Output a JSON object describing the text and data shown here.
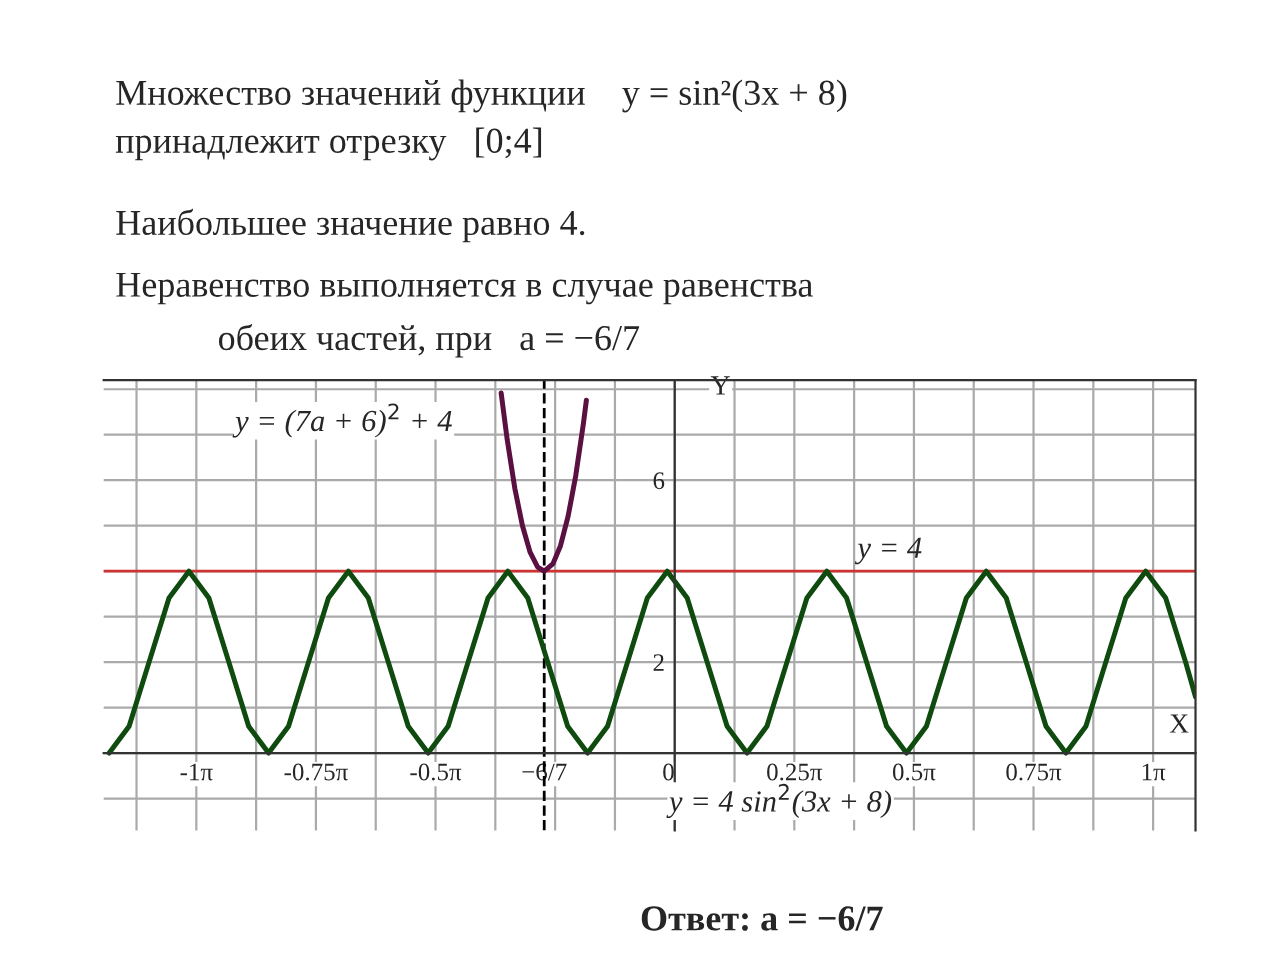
{
  "chart_data": {
    "type": "line",
    "xlabel": "X",
    "ylabel": "Y",
    "series": [
      {
        "color": "#0f4a0f",
        "x": [
          -3.714,
          -3.583,
          -3.452,
          -3.321,
          -3.19,
          -3.059,
          -2.928,
          -2.798,
          -2.667,
          -2.536,
          -2.405,
          -2.274,
          -2.143,
          -2.012,
          -1.881,
          -1.75,
          -1.619,
          -1.488,
          -1.357,
          -1.226,
          -1.096,
          -0.965,
          -0.834,
          -0.703,
          -0.572,
          -0.441,
          -0.31,
          -0.18,
          -0.049,
          0.082,
          0.213,
          0.344,
          0.475,
          0.606,
          0.737,
          0.868,
          0.999,
          1.129,
          1.26,
          1.391,
          1.522,
          1.653,
          1.784,
          1.915,
          2.046,
          2.177,
          2.308,
          2.438,
          2.569,
          2.7,
          2.831,
          2.962,
          3.093,
          3.224,
          3.355,
          3.42
        ],
        "values": [
          0,
          0.59,
          2,
          3.41,
          4,
          3.41,
          2,
          0.59,
          0,
          0.59,
          2,
          3.41,
          4,
          3.41,
          2,
          0.59,
          0,
          0.59,
          2,
          3.41,
          4,
          3.41,
          2,
          0.59,
          0,
          0.59,
          2,
          3.41,
          4,
          3.41,
          2,
          0.59,
          0,
          0.59,
          2,
          3.41,
          4,
          3.41,
          2,
          0.59,
          0,
          0.59,
          2,
          3.41,
          4,
          3.41,
          2,
          0.59,
          0,
          0.59,
          2,
          3.41,
          4,
          3.41,
          2,
          1.24
        ]
      },
      {
        "color": "#5a1040",
        "x": [
          -1.14,
          -1.1,
          -1.05,
          -1.0,
          -0.95,
          -0.9,
          -0.857,
          -0.8,
          -0.75,
          -0.7,
          -0.65,
          -0.6,
          -0.58
        ],
        "values": [
          7.92,
          6.89,
          5.82,
          5.0,
          4.42,
          4.09,
          4.0,
          4.16,
          4.56,
          5.21,
          6.1,
          7.24,
          7.76
        ]
      }
    ],
    "xlim": [
      -3.75,
      3.42
    ],
    "ylim": [
      -1.7,
      8.2
    ],
    "xticks": [
      {
        "value": -3.1416,
        "label": "-1π"
      },
      {
        "value": -2.3562,
        "label": "-0.75π"
      },
      {
        "value": -1.5708,
        "label": "-0.5π"
      },
      {
        "value": -0.857,
        "label": "−6/7"
      },
      {
        "value": 0,
        "label": "0"
      },
      {
        "value": 0.7854,
        "label": "0.25π"
      },
      {
        "value": 1.5708,
        "label": "0.5π"
      },
      {
        "value": 2.3562,
        "label": "0.75π"
      },
      {
        "value": 3.1416,
        "label": "1π"
      }
    ],
    "yticks": [
      2,
      6
    ],
    "grid": true,
    "ref_lines": [
      {
        "axis": "y",
        "value": 4,
        "label": "y = 4",
        "color": "#cc3333",
        "line_style": "solid"
      },
      {
        "axis": "x",
        "value": -0.857,
        "color": "#000000",
        "line_style": "dashed"
      }
    ],
    "annotations": [
      "Множество значений функции    y = sin²(3x + 8)",
      "принадлежит отрезку   [0;4]",
      "Наибольшее значение равно 4.",
      "Неравенство выполняется в случае равенства",
      "обеих частей, при   a = −6/7",
      "y = (7a + 6)$^{2}$ + 4",
      "y = 4 sin$^{2}$(3x + 8)",
      "Ответ: a = −6/7"
    ]
  }
}
